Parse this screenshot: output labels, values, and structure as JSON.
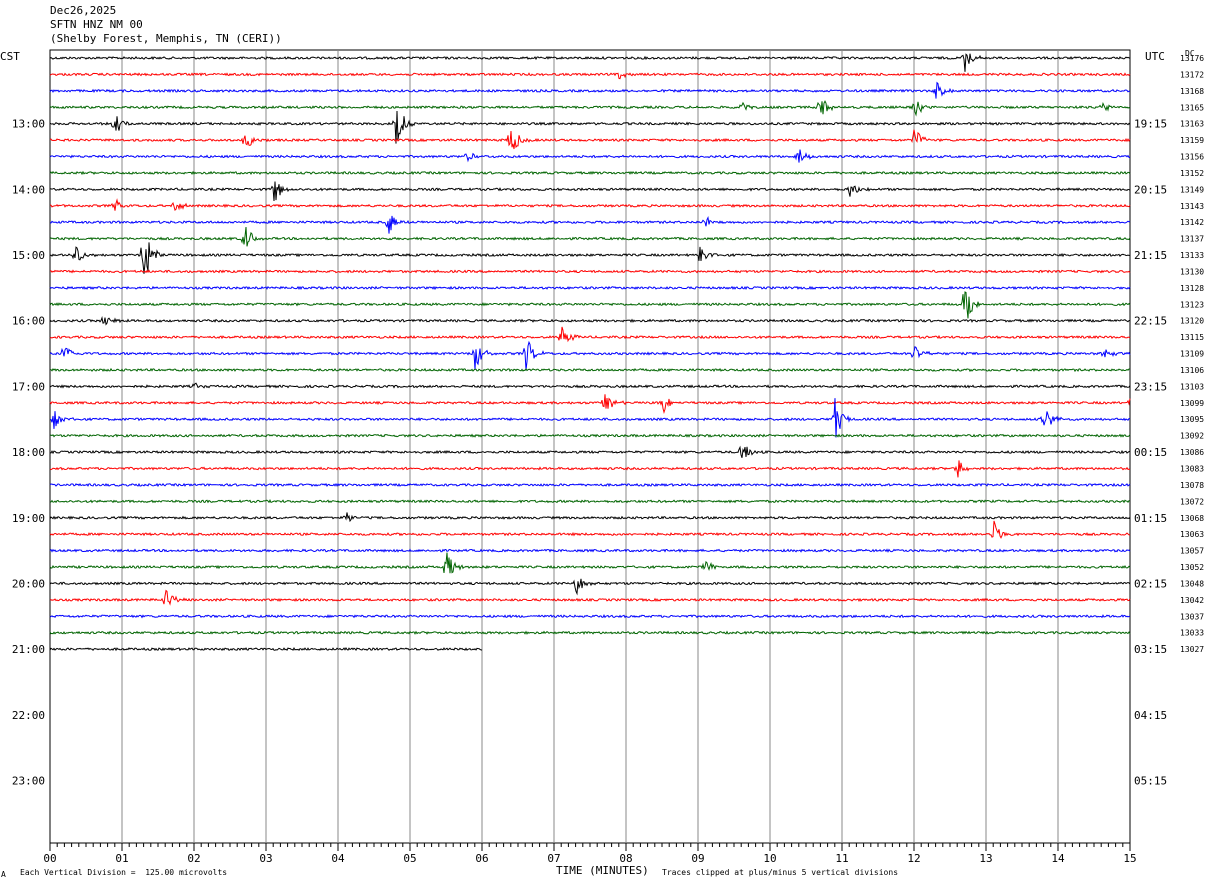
{
  "header": {
    "date": "Dec26,2025",
    "station": "SFTN HNZ NM 00",
    "location": "(Shelby Forest, Memphis, TN (CERI))"
  },
  "left_tz": "CST",
  "right_tz": "UTC",
  "dc_label": "DC",
  "footer": {
    "scale_note": "Each Vertical Division =  125.00 microvolts",
    "clip_note": "Traces clipped at plus/minus 5 vertical divisions",
    "corner_mark": "A"
  },
  "chart_data": {
    "type": "line",
    "title": "SFTN HNZ NM 00",
    "xlabel": "TIME (MINUTES)",
    "ylabel": "",
    "x_ticks": [
      "00",
      "01",
      "02",
      "03",
      "04",
      "05",
      "06",
      "07",
      "08",
      "09",
      "10",
      "11",
      "12",
      "13",
      "14",
      "15"
    ],
    "xlim": [
      0,
      15
    ],
    "left_hour_labels": [
      "13:00",
      "14:00",
      "15:00",
      "16:00",
      "17:00",
      "18:00",
      "19:00",
      "20:00",
      "21:00",
      "22:00",
      "23:00"
    ],
    "right_hour_labels": [
      "19:15",
      "20:15",
      "21:15",
      "22:15",
      "23:15",
      "00:15",
      "01:15",
      "02:15",
      "03:15",
      "04:15",
      "05:15"
    ],
    "dc_offsets": [
      "13176",
      "13172",
      "13168",
      "13165",
      "13163",
      "13159",
      "13156",
      "13152",
      "13149",
      "13143",
      "13142",
      "13137",
      "13133",
      "13130",
      "13128",
      "13123",
      "13120",
      "13115",
      "13109",
      "13106",
      "13103",
      "13099",
      "13095",
      "13092",
      "13086",
      "13083",
      "13078",
      "13072",
      "13068",
      "13063",
      "13057",
      "13052",
      "13048",
      "13042",
      "13037",
      "13033",
      "13027"
    ],
    "trace_colors": [
      "#000000",
      "#ff0000",
      "#0000ff",
      "#006400"
    ],
    "trace_count": 37,
    "last_trace_end_minute": 6.0,
    "events": [
      {
        "trace": 0,
        "minute": 12.7,
        "amp": 1.2
      },
      {
        "trace": 1,
        "minute": 7.9,
        "amp": 0.4
      },
      {
        "trace": 2,
        "minute": 12.3,
        "amp": 0.9
      },
      {
        "trace": 3,
        "minute": 10.7,
        "amp": 1.1
      },
      {
        "trace": 3,
        "minute": 12.0,
        "amp": 0.8
      },
      {
        "trace": 3,
        "minute": 14.6,
        "amp": 0.6
      },
      {
        "trace": 3,
        "minute": 9.6,
        "amp": 0.4
      },
      {
        "trace": 4,
        "minute": 0.9,
        "amp": 0.9
      },
      {
        "trace": 4,
        "minute": 4.8,
        "amp": 2.0
      },
      {
        "trace": 5,
        "minute": 2.7,
        "amp": 0.9
      },
      {
        "trace": 5,
        "minute": 6.4,
        "amp": 1.3
      },
      {
        "trace": 5,
        "minute": 12.0,
        "amp": 1.0
      },
      {
        "trace": 6,
        "minute": 10.4,
        "amp": 0.7
      },
      {
        "trace": 6,
        "minute": 5.8,
        "amp": 0.4
      },
      {
        "trace": 8,
        "minute": 3.1,
        "amp": 1.2
      },
      {
        "trace": 8,
        "minute": 11.1,
        "amp": 1.0
      },
      {
        "trace": 9,
        "minute": 0.9,
        "amp": 0.5
      },
      {
        "trace": 9,
        "minute": 1.7,
        "amp": 0.7
      },
      {
        "trace": 10,
        "minute": 4.7,
        "amp": 1.1
      },
      {
        "trace": 10,
        "minute": 9.1,
        "amp": 0.6
      },
      {
        "trace": 11,
        "minute": 2.7,
        "amp": 1.2
      },
      {
        "trace": 12,
        "minute": 0.35,
        "amp": 0.9
      },
      {
        "trace": 12,
        "minute": 1.3,
        "amp": 2.5
      },
      {
        "trace": 12,
        "minute": 9.0,
        "amp": 1.1
      },
      {
        "trace": 15,
        "minute": 12.7,
        "amp": 2.5
      },
      {
        "trace": 16,
        "minute": 0.75,
        "amp": 0.7
      },
      {
        "trace": 17,
        "minute": 7.1,
        "amp": 1.0
      },
      {
        "trace": 18,
        "minute": 0.2,
        "amp": 0.9
      },
      {
        "trace": 18,
        "minute": 5.9,
        "amp": 1.3
      },
      {
        "trace": 18,
        "minute": 6.6,
        "amp": 1.5
      },
      {
        "trace": 18,
        "minute": 12.0,
        "amp": 0.8
      },
      {
        "trace": 18,
        "minute": 14.6,
        "amp": 0.7
      },
      {
        "trace": 20,
        "minute": 2.0,
        "amp": 0.3
      },
      {
        "trace": 21,
        "minute": 7.7,
        "amp": 1.0
      },
      {
        "trace": 21,
        "minute": 8.5,
        "amp": 1.0
      },
      {
        "trace": 21,
        "minute": 15.0,
        "amp": 0.6
      },
      {
        "trace": 22,
        "minute": 0.05,
        "amp": 0.8
      },
      {
        "trace": 22,
        "minute": 10.9,
        "amp": 1.7
      },
      {
        "trace": 22,
        "minute": 13.8,
        "amp": 1.2
      },
      {
        "trace": 24,
        "minute": 9.6,
        "amp": 1.0
      },
      {
        "trace": 25,
        "minute": 12.6,
        "amp": 0.9
      },
      {
        "trace": 28,
        "minute": 4.1,
        "amp": 0.6
      },
      {
        "trace": 29,
        "minute": 13.1,
        "amp": 1.2
      },
      {
        "trace": 31,
        "minute": 5.5,
        "amp": 1.6
      },
      {
        "trace": 31,
        "minute": 9.1,
        "amp": 0.6
      },
      {
        "trace": 32,
        "minute": 7.3,
        "amp": 1.0
      },
      {
        "trace": 33,
        "minute": 1.6,
        "amp": 1.1
      }
    ]
  }
}
